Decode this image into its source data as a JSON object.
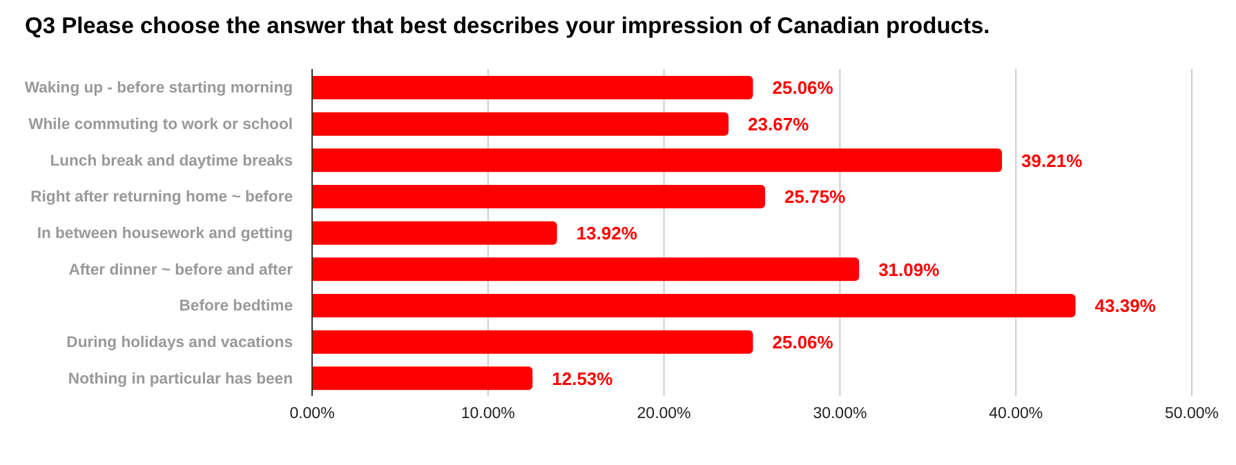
{
  "chart_data": {
    "type": "bar",
    "orientation": "horizontal",
    "title": "Q3 Please choose the answer that best describes your impression of Canadian products.",
    "categories": [
      "Waking up - before starting morning",
      "While commuting to work or school",
      "Lunch break and daytime breaks",
      "Right after returning home ~ before",
      "In between housework and getting",
      "After dinner ~ before and after",
      "Before bedtime",
      "During holidays and vacations",
      "Nothing in particular has been"
    ],
    "values": [
      25.06,
      23.67,
      39.21,
      25.75,
      13.92,
      31.09,
      43.39,
      25.06,
      12.53
    ],
    "value_labels": [
      "25.06%",
      "23.67%",
      "39.21%",
      "25.75%",
      "13.92%",
      "31.09%",
      "43.39%",
      "25.06%",
      "12.53%"
    ],
    "color": "#ff0000",
    "xlim": [
      0,
      50
    ],
    "xticks": [
      {
        "value": 0,
        "label": "0.00%"
      },
      {
        "value": 10,
        "label": "10.00%"
      },
      {
        "value": 20,
        "label": "20.00%"
      },
      {
        "value": 30,
        "label": "30.00%"
      },
      {
        "value": 40,
        "label": "40.00%"
      },
      {
        "value": 50,
        "label": "50.00%"
      }
    ],
    "grid": "x",
    "legend": false
  }
}
